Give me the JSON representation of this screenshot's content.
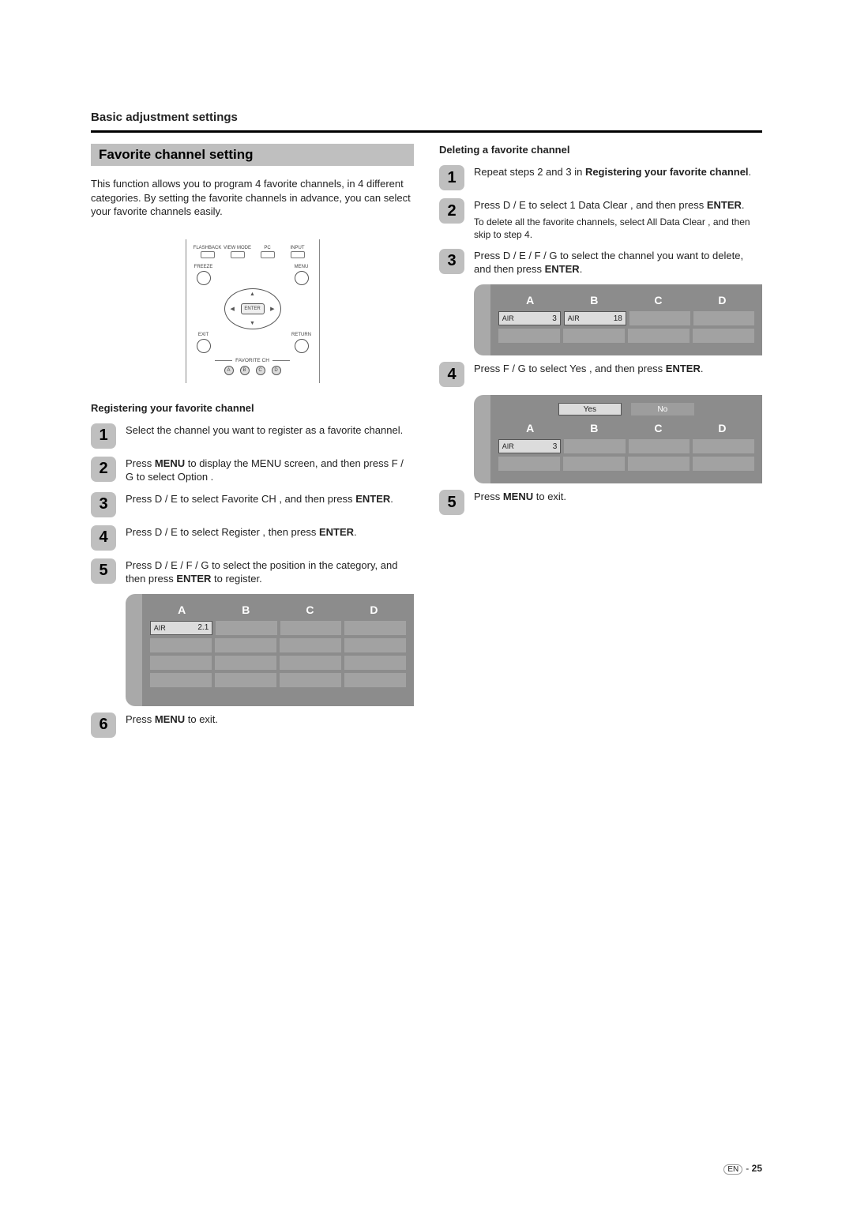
{
  "header": {
    "title": "Basic adjustment settings"
  },
  "banner": "Favorite channel setting",
  "intro": "This function allows you to program 4 favorite channels, in 4 different categories. By setting the favorite channels in advance, you can select your favorite channels easily.",
  "remote": {
    "top_labels": [
      "FLASHBACK",
      "VIEW MODE",
      "PC",
      "INPUT"
    ],
    "freeze": "FREEZE",
    "menu": "MENU",
    "enter": "ENTER",
    "exit": "EXIT",
    "return": "RETURN",
    "fav_label": "FAVORITE CH",
    "fav_letters": [
      "A",
      "B",
      "C",
      "D"
    ]
  },
  "left": {
    "sub": "Registering your favorite channel",
    "steps": [
      {
        "n": "1",
        "html": "Select the channel you want to register as a favorite channel."
      },
      {
        "n": "2",
        "html": "Press <b>MENU</b> to display the MENU screen, and then press  F /  G to select  Option ."
      },
      {
        "n": "3",
        "html": "Press  D /  E to select  Favorite CH , and then press <b>ENTER</b>."
      },
      {
        "n": "4",
        "html": "Press  D /  E to select  Register , then press <b>ENTER</b>."
      },
      {
        "n": "5",
        "html": "Press  D /  E /   F /  G to select the position in the category, and then press <b>ENTER</b> to register."
      },
      {
        "n": "6",
        "html": "Press <b>MENU</b> to exit."
      }
    ],
    "table": {
      "cats": [
        "A",
        "B",
        "C",
        "D"
      ],
      "rows": 4,
      "highlight": {
        "row": 0,
        "col": 0,
        "air": "AIR",
        "num": "2.1"
      }
    }
  },
  "right": {
    "sub": "Deleting a favorite channel",
    "steps": [
      {
        "n": "1",
        "html": "Repeat steps 2 and 3 in <b>Registering your favorite channel</b>."
      },
      {
        "n": "2",
        "html": "Press  D /  E to select  1 Data Clear , and then press <b>ENTER</b>.",
        "note": "To delete all the favorite channels, select  All Data Clear , and then skip to step 4."
      },
      {
        "n": "3",
        "html": "Press  D /  E /   F /  G to select the channel you want to delete, and then press <b>ENTER</b>."
      },
      {
        "n": "4",
        "html": "Press  F /  G to select  Yes , and then press <b>ENTER</b>."
      },
      {
        "n": "5",
        "html": "Press <b>MENU</b> to exit."
      }
    ],
    "table3": {
      "cats": [
        "A",
        "B",
        "C",
        "D"
      ],
      "cells": [
        {
          "row": 0,
          "col": 0,
          "air": "AIR",
          "num": "3",
          "hl": true
        },
        {
          "row": 0,
          "col": 1,
          "air": "AIR",
          "num": "18",
          "hl": true
        }
      ],
      "rows": 2
    },
    "table4": {
      "yes": "Yes",
      "no": "No",
      "cats": [
        "A",
        "B",
        "C",
        "D"
      ],
      "cells": [
        {
          "row": 0,
          "col": 0,
          "air": "AIR",
          "num": "3",
          "hl": true
        }
      ],
      "rows": 2
    }
  },
  "footer": {
    "lang": "EN",
    "sep": "-",
    "page": "25"
  }
}
